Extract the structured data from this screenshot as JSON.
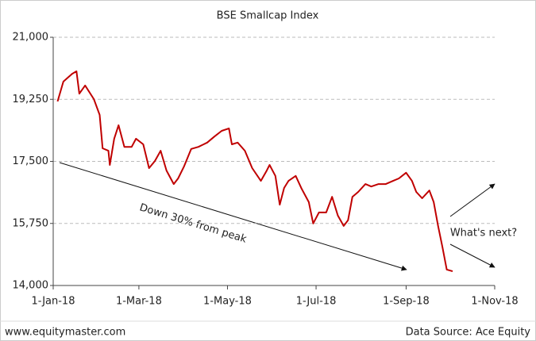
{
  "chart_data": {
    "type": "line",
    "title": "BSE Smallcap Index",
    "x": [
      "4-Jan-18",
      "8-Jan-18",
      "14-Jan-18",
      "17-Jan-18",
      "19-Jan-18",
      "23-Jan-18",
      "29-Jan-18",
      "2-Feb-18",
      "4-Feb-18",
      "8-Feb-18",
      "9-Feb-18",
      "12-Feb-18",
      "15-Feb-18",
      "19-Feb-18",
      "24-Feb-18",
      "27-Feb-18",
      "4-Mar-18",
      "8-Mar-18",
      "12-Mar-18",
      "16-Mar-18",
      "20-Mar-18",
      "25-Mar-18",
      "28-Mar-18",
      "1-Apr-18",
      "6-Apr-18",
      "11-Apr-18",
      "17-Apr-18",
      "22-Apr-18",
      "27-Apr-18",
      "2-May-18",
      "4-May-18",
      "8-May-18",
      "13-May-18",
      "18-May-18",
      "24-May-18",
      "28-May-18",
      "30-May-18",
      "3-Jun-18",
      "6-Jun-18",
      "9-Jun-18",
      "12-Jun-18",
      "17-Jun-18",
      "21-Jun-18",
      "26-Jun-18",
      "29-Jun-18",
      "3-Jul-18",
      "8-Jul-18",
      "12-Jul-18",
      "16-Jul-18",
      "20-Jul-18",
      "23-Jul-18",
      "26-Jul-18",
      "30-Jul-18",
      "4-Aug-18",
      "8-Aug-18",
      "13-Aug-18",
      "18-Aug-18",
      "23-Aug-18",
      "27-Aug-18",
      "1-Sep-18",
      "5-Sep-18",
      "8-Sep-18",
      "12-Sep-18",
      "17-Sep-18",
      "20-Sep-18",
      "23-Sep-18",
      "26-Sep-18",
      "29-Sep-18",
      "3-Oct-18"
    ],
    "series": [
      {
        "name": "BSE Smallcap Index",
        "color": "#c00000",
        "values": [
          19190,
          19750,
          19970,
          20040,
          19410,
          19640,
          19255,
          18810,
          17870,
          17800,
          17400,
          18140,
          18520,
          17910,
          17910,
          18140,
          17980,
          17310,
          17510,
          17800,
          17240,
          16860,
          17020,
          17350,
          17850,
          17910,
          18030,
          18200,
          18360,
          18430,
          17980,
          18030,
          17800,
          17310,
          16950,
          17240,
          17400,
          17090,
          16280,
          16750,
          16950,
          17090,
          16730,
          16350,
          15750,
          16060,
          16060,
          16500,
          15970,
          15680,
          15840,
          16500,
          16640,
          16860,
          16790,
          16860,
          16860,
          16950,
          17020,
          17180,
          16950,
          16640,
          16460,
          16680,
          16350,
          15680,
          15080,
          14450,
          14400
        ]
      }
    ],
    "xlim": [
      "1-Jan-18",
      "1-Nov-18"
    ],
    "xticks": [
      "1-Jan-18",
      "1-Mar-18",
      "1-May-18",
      "1-Jul-18",
      "1-Sep-18",
      "1-Nov-18"
    ],
    "ylim": [
      14000,
      21000
    ],
    "yticks": [
      {
        "value": 14000,
        "label": "14,000"
      },
      {
        "value": 15750,
        "label": "15,750"
      },
      {
        "value": 17500,
        "label": "17,500"
      },
      {
        "value": 19250,
        "label": "19,250"
      },
      {
        "value": 21000,
        "label": "21,000"
      }
    ],
    "grid": true,
    "annotations": [
      "Down 30% from peak",
      "What's next?"
    ],
    "footer_left": "www.equitymaster.com",
    "footer_right": "Data Source: Ace Equity"
  }
}
